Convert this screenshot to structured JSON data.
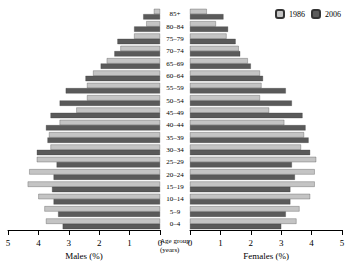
{
  "chart_data": [
    {
      "type": "bar",
      "orientation": "horizontal",
      "xlabel": "Males (%)",
      "ylabel": "Age group (years)",
      "categories": [
        "0–4",
        "5–9",
        "10–14",
        "15–19",
        "20–24",
        "25–29",
        "30–34",
        "35–39",
        "40–44",
        "45–49",
        "50–54",
        "55–59",
        "60–64",
        "65–69",
        "70–74",
        "75–79",
        "80–84",
        "85+"
      ],
      "series": [
        {
          "name": "1986",
          "color": "#c4c4c4",
          "values": [
            3.75,
            3.8,
            4.0,
            4.35,
            4.3,
            4.05,
            3.6,
            3.65,
            3.3,
            2.75,
            2.4,
            2.4,
            2.2,
            1.75,
            1.3,
            0.85,
            0.45,
            0.2
          ]
        },
        {
          "name": "2006",
          "color": "#5a5a5a",
          "values": [
            3.2,
            3.35,
            3.5,
            3.55,
            3.5,
            3.4,
            4.05,
            3.7,
            3.75,
            3.6,
            3.3,
            3.1,
            2.45,
            1.95,
            1.5,
            1.4,
            0.85,
            0.55
          ]
        }
      ],
      "xlim": [
        0,
        5
      ],
      "xticks": [
        0,
        1,
        2,
        3,
        4,
        5
      ],
      "grid": false
    },
    {
      "type": "bar",
      "orientation": "horizontal",
      "xlabel": "Females (%)",
      "legend": "upper right",
      "categories": [
        "0–4",
        "5–9",
        "10–14",
        "15–19",
        "20–24",
        "25–29",
        "30–34",
        "35–39",
        "40–44",
        "45–49",
        "50–54",
        "55–59",
        "60–64",
        "65–69",
        "70–74",
        "75–79",
        "80–84",
        "85+"
      ],
      "series": [
        {
          "name": "1986",
          "color": "#c4c4c4",
          "values": [
            3.5,
            3.6,
            3.95,
            4.1,
            4.1,
            4.15,
            3.65,
            3.75,
            3.1,
            2.6,
            2.3,
            2.35,
            2.3,
            1.9,
            1.6,
            1.2,
            0.85,
            0.55
          ]
        },
        {
          "name": "2006",
          "color": "#5a5a5a",
          "values": [
            3.0,
            3.15,
            3.3,
            3.3,
            3.45,
            3.35,
            3.95,
            3.9,
            3.8,
            3.7,
            3.35,
            3.15,
            2.4,
            2.0,
            1.65,
            1.5,
            1.25,
            1.1
          ]
        }
      ],
      "xlim": [
        0,
        5
      ],
      "xticks": [
        0,
        1,
        2,
        3,
        4,
        5
      ],
      "grid": false
    }
  ]
}
